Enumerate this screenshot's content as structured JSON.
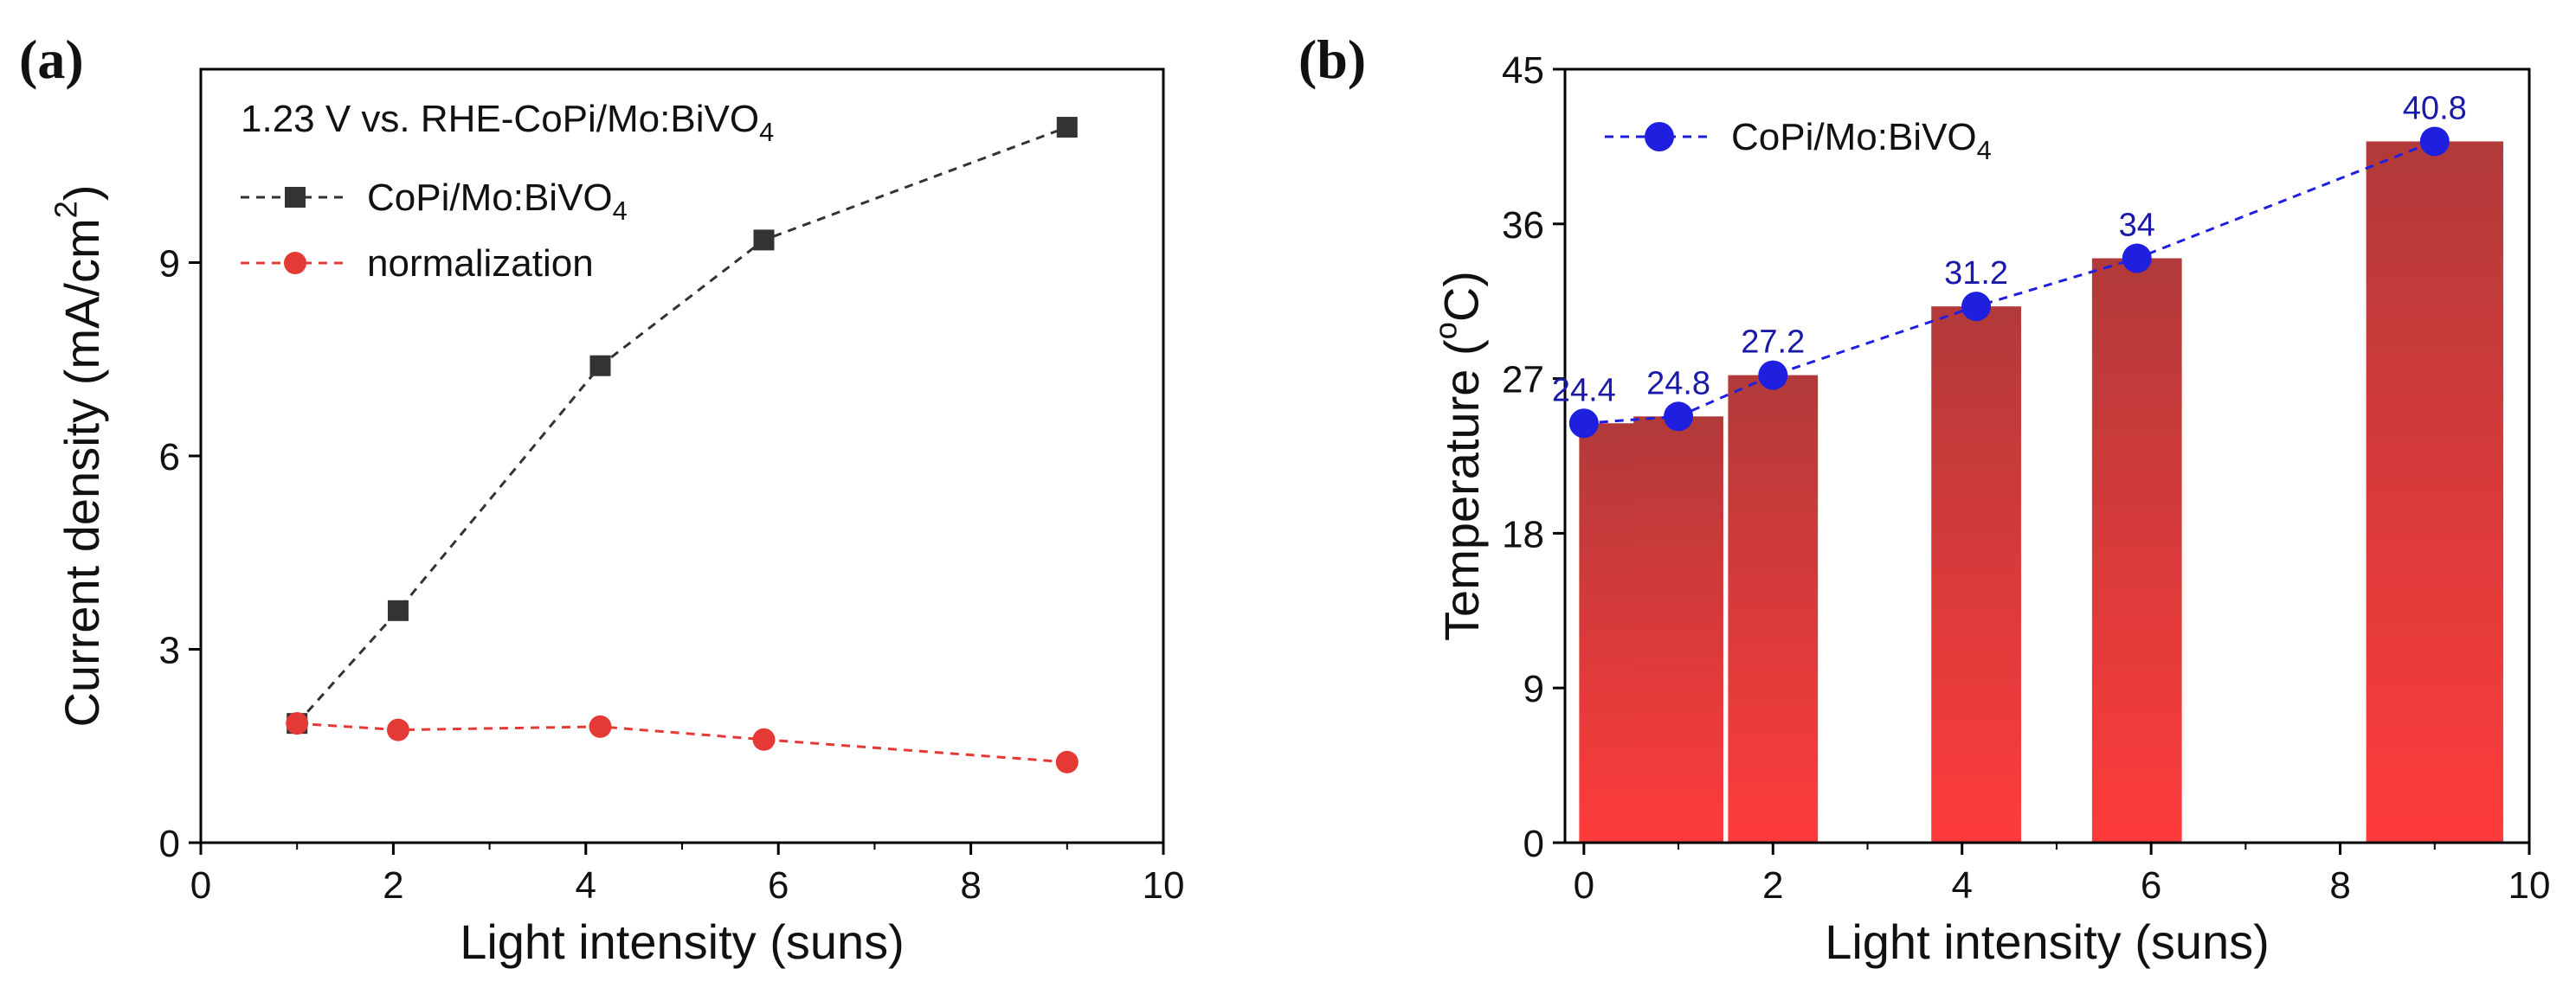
{
  "chart_data": [
    {
      "panel_label": "(a)",
      "type": "line",
      "title": "",
      "xlabel": "Light intensity (suns)",
      "ylabel": "Current density (mA/cm",
      "ylabel_sup": "2",
      "ylabel_end": ")",
      "xlim": [
        0,
        10
      ],
      "ylim": [
        0,
        12
      ],
      "xticks": [
        0,
        2,
        4,
        6,
        8,
        10
      ],
      "yticks": [
        0,
        3,
        6,
        9
      ],
      "grid": false,
      "annotation": {
        "text": "1.23 V vs. RHE-CoPi/Mo:BiVO",
        "sub": "4"
      },
      "legend_position": "top-left",
      "series": [
        {
          "name": "CoPi/Mo:BiVO",
          "name_sub": "4",
          "color": "#333333",
          "marker": "square",
          "line": "dashed",
          "x": [
            1,
            2.05,
            4.15,
            5.85,
            9
          ],
          "y": [
            1.85,
            3.6,
            7.4,
            9.35,
            11.1
          ]
        },
        {
          "name": "normalization",
          "name_sub": "",
          "color": "#e53935",
          "marker": "circle",
          "line": "dashed",
          "x": [
            1,
            2.05,
            4.15,
            5.85,
            9
          ],
          "y": [
            1.85,
            1.75,
            1.8,
            1.6,
            1.25
          ]
        }
      ]
    },
    {
      "panel_label": "(b)",
      "type": "bar",
      "title": "",
      "xlabel": "Light intensity (suns)",
      "ylabel": "Temperature (",
      "ylabel_sup": "o",
      "ylabel_end": "C)",
      "xlim": [
        -0.2,
        10
      ],
      "ylim": [
        0,
        45
      ],
      "xticks": [
        0,
        2,
        4,
        6,
        8,
        10
      ],
      "yticks": [
        0,
        9,
        18,
        27,
        36,
        45
      ],
      "grid": false,
      "legend_position": "top-left",
      "bars": {
        "color_top": "#b23a3a",
        "color_bottom": "#ff3b3b",
        "x": [
          0,
          1,
          2,
          4.15,
          5.85,
          9
        ],
        "widths": [
          0.55,
          0.95,
          0.95,
          0.95,
          0.95,
          1.45
        ],
        "values": [
          24.4,
          24.8,
          27.2,
          31.2,
          34,
          40.8
        ]
      },
      "series": [
        {
          "name": "CoPi/Mo:BiVO",
          "name_sub": "4",
          "color": "#1f1fe0",
          "marker": "circle",
          "line": "dashed",
          "x": [
            0,
            1,
            2,
            4.15,
            5.85,
            9
          ],
          "y": [
            24.4,
            24.8,
            27.2,
            31.2,
            34,
            40.8
          ],
          "labels": [
            "24.4",
            "24.8",
            "27.2",
            "31.2",
            "34",
            "40.8"
          ]
        }
      ]
    }
  ]
}
